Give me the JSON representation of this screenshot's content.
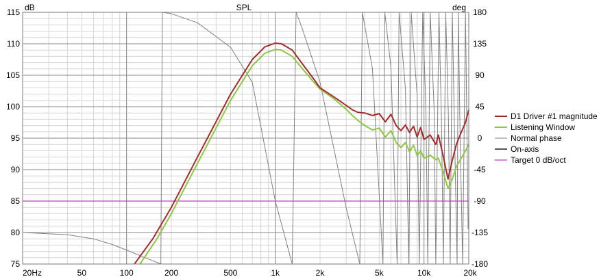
{
  "chart_data": {
    "type": "line",
    "title": "SPL",
    "y_unit": "dB",
    "y2_unit": "deg",
    "xscale": "log",
    "xlim": [
      20,
      20000
    ],
    "ylim": [
      75,
      115
    ],
    "y2lim": [
      -180,
      180
    ],
    "grid": true,
    "legend_position": "right",
    "x_ticks": [
      {
        "v": 20,
        "label": "20Hz"
      },
      {
        "v": 50,
        "label": "50"
      },
      {
        "v": 100,
        "label": "100"
      },
      {
        "v": 200,
        "label": "200"
      },
      {
        "v": 500,
        "label": "500"
      },
      {
        "v": 1000,
        "label": "1k"
      },
      {
        "v": 2000,
        "label": "2k"
      },
      {
        "v": 5000,
        "label": "5k"
      },
      {
        "v": 10000,
        "label": "10k"
      },
      {
        "v": 20000,
        "label": "20k"
      }
    ],
    "y_ticks": [
      "75",
      "80",
      "85",
      "90",
      "95",
      "100",
      "105",
      "110",
      "115"
    ],
    "y2_ticks": [
      "-180",
      "-135",
      "-90",
      "-45",
      "0",
      "45",
      "90",
      "135",
      "180"
    ],
    "series": [
      {
        "name": "D1 Driver #1 magnitude",
        "color": "#a52a2a",
        "axis": "left",
        "x": [
          113,
          150,
          200,
          300,
          500,
          700,
          850,
          1000,
          1100,
          1300,
          1500,
          1800,
          2000,
          2500,
          3000,
          3300,
          3600,
          4000,
          4500,
          5000,
          5500,
          6000,
          6500,
          7000,
          7500,
          8000,
          8500,
          9000,
          9500,
          10000,
          11000,
          12000,
          12500,
          13500,
          14500,
          15500,
          16500,
          17500,
          19000,
          20000
        ],
        "y": [
          75,
          79,
          84,
          92,
          102,
          107.5,
          109.5,
          110.1,
          110,
          109,
          107,
          104.5,
          103,
          101.5,
          100.2,
          99.5,
          99.1,
          99,
          98.6,
          98.9,
          97.6,
          98.8,
          97,
          96.2,
          97.1,
          95.9,
          96.9,
          95.2,
          96.7,
          94.8,
          95.5,
          94,
          95.5,
          92,
          88.5,
          91.5,
          94,
          95.5,
          97.5,
          99.5
        ]
      },
      {
        "name": "Listening Window",
        "color": "#8dc63f",
        "axis": "left",
        "x": [
          123,
          160,
          200,
          300,
          500,
          700,
          850,
          1000,
          1100,
          1300,
          1500,
          1800,
          2000,
          2500,
          3000,
          3300,
          3600,
          4000,
          4500,
          5000,
          5500,
          6000,
          6500,
          7000,
          7500,
          8000,
          8500,
          9000,
          9500,
          10000,
          11000,
          12000,
          12500,
          13500,
          14500,
          15500,
          16500,
          17500,
          19000,
          20000
        ],
        "y": [
          75,
          79,
          83,
          91,
          101,
          106.5,
          108.5,
          109.1,
          109,
          108,
          106.2,
          104,
          102.8,
          101.2,
          99.6,
          98.6,
          97.8,
          97,
          96.3,
          96.6,
          95.2,
          96.2,
          94.3,
          93.5,
          94.3,
          92.8,
          93.9,
          92.2,
          93,
          91.8,
          92.3,
          91.6,
          91.8,
          89.5,
          87,
          88.5,
          90.5,
          91.5,
          93,
          94
        ]
      },
      {
        "name": "Normal phase",
        "color": "#808080",
        "axis": "right",
        "x": [
          20,
          40,
          60,
          80,
          100,
          130,
          170,
          174,
          200,
          300,
          500,
          700,
          1000,
          1300,
          1380,
          1500,
          2000,
          3000,
          3700,
          3850,
          4500,
          5300,
          5450,
          6000,
          6600,
          6800,
          7500,
          7900,
          8200,
          9000,
          9300,
          9800,
          10300,
          10600,
          11000,
          11700,
          12000,
          12600,
          13100,
          13500,
          14000,
          14600,
          15000,
          15500,
          16000,
          16700,
          17000,
          17500,
          18200,
          19000,
          19800
        ],
        "y": [
          -135,
          -138,
          -144,
          -152,
          -160,
          -170,
          -180,
          180,
          178,
          165,
          130,
          80,
          -90,
          -180,
          180,
          160,
          80,
          -100,
          -180,
          180,
          100,
          -180,
          180,
          100,
          -180,
          180,
          70,
          -180,
          180,
          60,
          -180,
          180,
          40,
          -180,
          180,
          40,
          -180,
          180,
          30,
          -180,
          180,
          30,
          -180,
          180,
          20,
          -180,
          180,
          0,
          -180,
          180,
          -130
        ]
      },
      {
        "name": "On-axis",
        "color": "#555555",
        "axis": "left",
        "x": [],
        "y": []
      },
      {
        "name": "Target 0 dB/oct",
        "color": "#cc33cc",
        "axis": "left",
        "x": [
          20,
          20000
        ],
        "y": [
          85,
          85
        ]
      }
    ]
  }
}
